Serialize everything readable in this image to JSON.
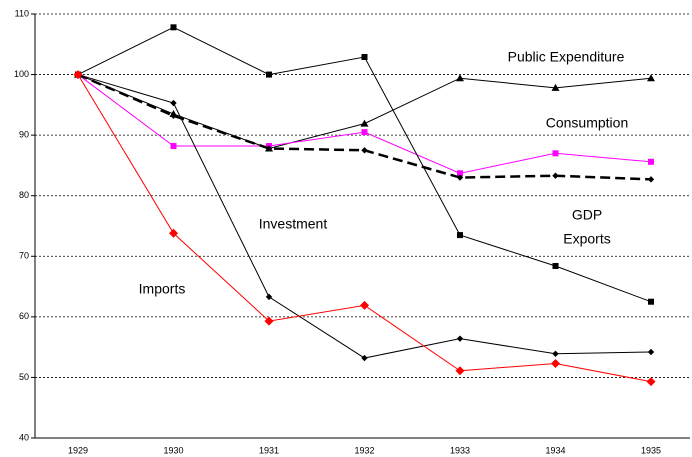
{
  "chart_data": {
    "type": "line",
    "categories": [
      "1929",
      "1930",
      "1931",
      "1932",
      "1933",
      "1934",
      "1935"
    ],
    "ylim": [
      40,
      110
    ],
    "yticks": [
      40,
      50,
      60,
      70,
      80,
      90,
      100,
      110
    ],
    "grid": true,
    "series": [
      {
        "name": "Public Expenditure",
        "color": "#000000",
        "marker": "triangle",
        "values": [
          100,
          93.5,
          87.8,
          91.9,
          99.4,
          97.8,
          99.4
        ]
      },
      {
        "name": "Consumption",
        "color": "#ff00ff",
        "marker": "square",
        "values": [
          100,
          88.2,
          88.2,
          90.5,
          83.7,
          87.0,
          85.6
        ]
      },
      {
        "name": "GDP",
        "color": "#000000",
        "marker": "diamond",
        "dashed": true,
        "values": [
          100,
          93.2,
          87.8,
          87.5,
          83.0,
          83.3,
          82.7
        ]
      },
      {
        "name": "Exports",
        "color": "#000000",
        "marker": "square",
        "values": [
          100,
          107.8,
          100,
          102.9,
          73.5,
          68.4,
          62.5
        ]
      },
      {
        "name": "Investment",
        "color": "#000000",
        "marker": "diamond",
        "values": [
          100,
          95.3,
          63.3,
          53.2,
          56.4,
          53.9,
          54.2
        ]
      },
      {
        "name": "Imports",
        "color": "#ff0000",
        "marker": "diamond",
        "values": [
          100,
          73.8,
          59.3,
          61.9,
          51.1,
          52.3,
          49.3
        ]
      }
    ]
  }
}
